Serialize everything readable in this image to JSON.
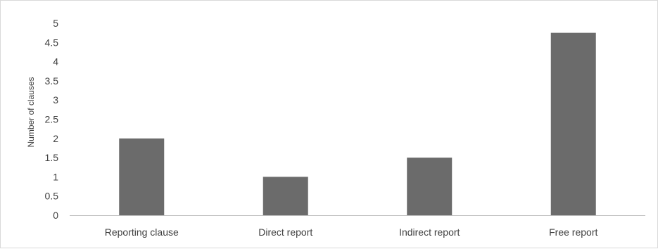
{
  "chart_data": {
    "type": "bar",
    "categories": [
      "Reporting clause",
      "Direct report",
      "Indirect report",
      "Free report"
    ],
    "values": [
      2,
      1,
      1.5,
      4.75
    ],
    "xlabel": "",
    "ylabel": "Number of clauses",
    "ylim": [
      0,
      5
    ],
    "yticks": [
      "0",
      "0.5",
      "1",
      "1.5",
      "2",
      "2.5",
      "3",
      "3.5",
      "4",
      "4.5",
      "5"
    ],
    "grid": false,
    "legend": "none",
    "bar_color": "#6b6b6b",
    "axis_color": "#bfbfbf",
    "text_color": "#404040"
  }
}
